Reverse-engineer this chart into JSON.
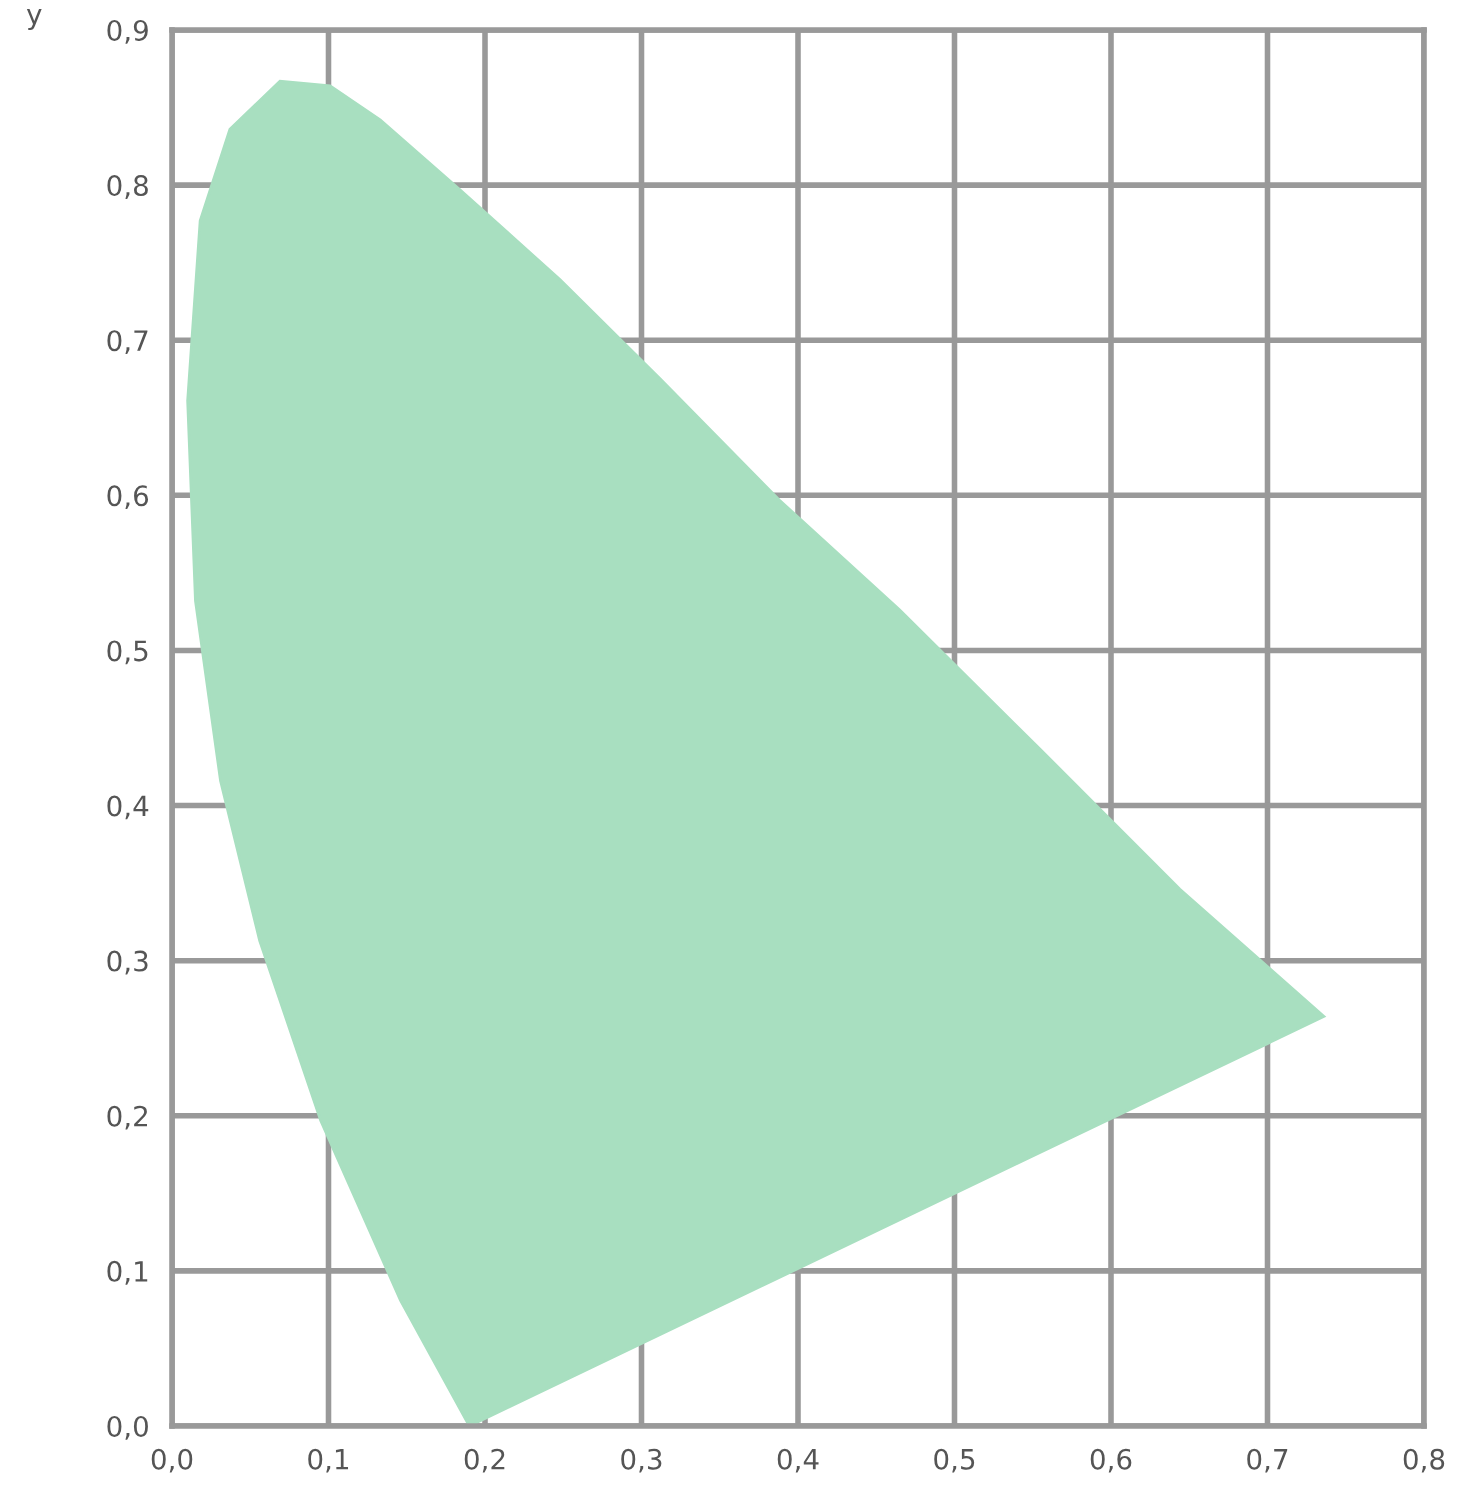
{
  "chart_data": {
    "type": "area",
    "ylabel": "y",
    "series": [
      {
        "color": "#a8dfc0",
        "x": [
          0.19,
          0.146,
          0.095,
          0.056,
          0.031,
          0.015,
          0.01,
          0.018,
          0.037,
          0.069,
          0.101,
          0.133,
          0.184,
          0.248,
          0.312,
          0.388,
          0.465,
          0.555,
          0.644,
          0.736,
          0.19
        ],
        "values": [
          0.0,
          0.081,
          0.197,
          0.313,
          0.416,
          0.532,
          0.661,
          0.777,
          0.836,
          0.867,
          0.864,
          0.842,
          0.797,
          0.739,
          0.675,
          0.597,
          0.526,
          0.436,
          0.346,
          0.264,
          0.0
        ]
      }
    ],
    "xlim": [
      0,
      0.8
    ],
    "ylim": [
      0,
      0.9
    ],
    "xticks": [
      {
        "value": 0,
        "label": "0,0"
      },
      {
        "value": 0.1,
        "label": "0,1"
      },
      {
        "value": 0.2,
        "label": "0,2"
      },
      {
        "value": 0.3,
        "label": "0,3"
      },
      {
        "value": 0.4,
        "label": "0,4"
      },
      {
        "value": 0.5,
        "label": "0,5"
      },
      {
        "value": 0.6,
        "label": "0,6"
      },
      {
        "value": 0.7,
        "label": "0,7"
      },
      {
        "value": 0.8,
        "label": "0,8"
      }
    ],
    "yticks": [
      {
        "value": 0,
        "label": "0,0"
      },
      {
        "value": 0.1,
        "label": "0,1"
      },
      {
        "value": 0.2,
        "label": "0,2"
      },
      {
        "value": 0.3,
        "label": "0,3"
      },
      {
        "value": 0.4,
        "label": "0,4"
      },
      {
        "value": 0.5,
        "label": "0,5"
      },
      {
        "value": 0.6,
        "label": "0,6"
      },
      {
        "value": 0.7,
        "label": "0,7"
      },
      {
        "value": 0.8,
        "label": "0,8"
      },
      {
        "value": 0.9,
        "label": "0,9"
      }
    ],
    "grid": true
  }
}
